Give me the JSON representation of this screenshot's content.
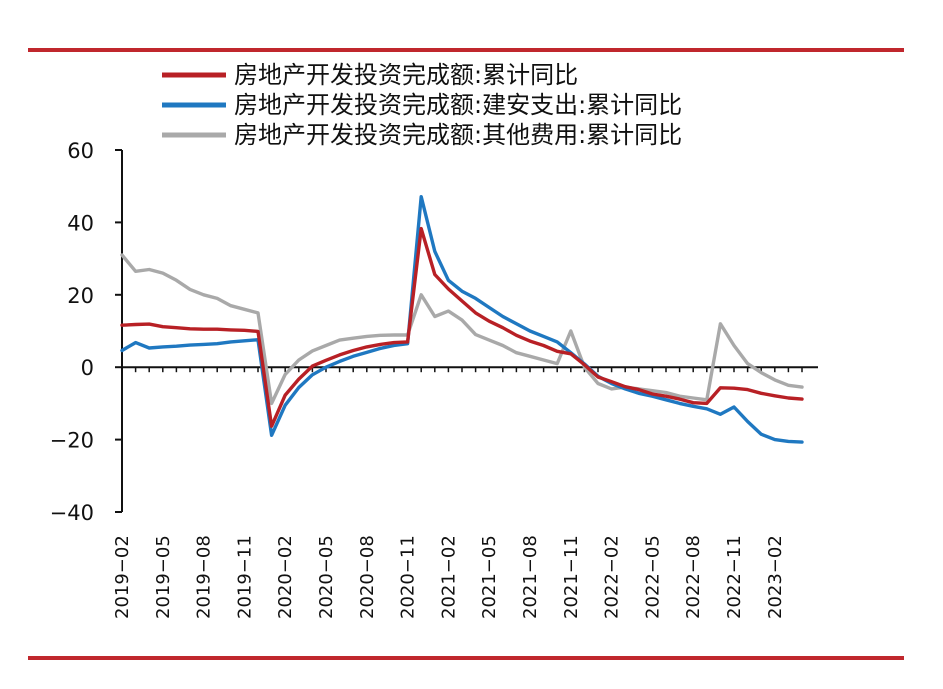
{
  "chart_data": {
    "type": "line",
    "title": "",
    "xlabel": "",
    "ylabel": "",
    "ylim": [
      -40,
      60
    ],
    "yticks": [
      60,
      40,
      20,
      0,
      -20,
      -40
    ],
    "yticks_text": [
      "60",
      "40",
      "20",
      "0",
      "−20",
      "−40"
    ],
    "grid": false,
    "legend_position": "top",
    "x": [
      "2019-02",
      "2019-03",
      "2019-04",
      "2019-05",
      "2019-06",
      "2019-07",
      "2019-08",
      "2019-09",
      "2019-10",
      "2019-11",
      "2019-12",
      "2020-02",
      "2020-03",
      "2020-04",
      "2020-05",
      "2020-06",
      "2020-07",
      "2020-08",
      "2020-09",
      "2020-10",
      "2020-11",
      "2020-12",
      "2021-02",
      "2021-03",
      "2021-04",
      "2021-05",
      "2021-06",
      "2021-07",
      "2021-08",
      "2021-09",
      "2021-10",
      "2021-11",
      "2021-12",
      "2022-02",
      "2022-03",
      "2022-04",
      "2022-05",
      "2022-06",
      "2022-07",
      "2022-08",
      "2022-09",
      "2022-10",
      "2022-11",
      "2022-12",
      "2023-02",
      "2023-03",
      "2023-04",
      "2023-05",
      "2023-06",
      "2023-07",
      "2023-08"
    ],
    "xtick_labels": [
      "2019−02",
      "2019−05",
      "2019−08",
      "2019−11",
      "2020−02",
      "2020−05",
      "2020−08",
      "2020−11",
      "2021−02",
      "2021−05",
      "2021−08",
      "2021−11",
      "2022−02",
      "2022−05",
      "2022−08",
      "2022−11",
      "2023−02",
      "2023−05",
      "2023−08"
    ],
    "series": [
      {
        "name": "房地产开发投资完成额:累计同比",
        "color": "#b82025",
        "values": [
          11.6,
          11.8,
          11.9,
          11.2,
          10.9,
          10.6,
          10.5,
          10.5,
          10.3,
          10.2,
          9.9,
          -16.3,
          -7.7,
          -3.3,
          0.3,
          1.9,
          3.4,
          4.6,
          5.6,
          6.3,
          6.8,
          7.0,
          38.3,
          25.6,
          21.6,
          18.3,
          15.0,
          12.7,
          10.9,
          8.8,
          7.2,
          6.0,
          4.4,
          3.7,
          0.7,
          -2.7,
          -4.0,
          -5.4,
          -6.2,
          -7.4,
          -8.0,
          -8.8,
          -9.8,
          -10.0,
          -5.7,
          -5.8,
          -6.2,
          -7.2,
          -7.9,
          -8.5,
          -8.8
        ]
      },
      {
        "name": "房地产开发投资完成额:建安支出:累计同比",
        "color": "#1f78c1",
        "values": [
          4.6,
          6.8,
          5.3,
          5.6,
          5.8,
          6.1,
          6.3,
          6.5,
          7.0,
          7.3,
          7.6,
          -18.8,
          -10.5,
          -5.6,
          -2.1,
          0.0,
          1.6,
          3.0,
          4.1,
          5.2,
          6.0,
          6.5,
          47.1,
          32.0,
          24.0,
          21.0,
          19.0,
          16.5,
          14.0,
          12.0,
          10.0,
          8.5,
          7.0,
          4.0,
          0.9,
          -2.5,
          -4.5,
          -6.0,
          -7.2,
          -8.0,
          -9.0,
          -10.0,
          -10.8,
          -11.5,
          -13.0,
          -11.0,
          -15.0,
          -18.5,
          -20.0,
          -20.5,
          -20.7
        ]
      },
      {
        "name": "房地产开发投资完成额:其他费用:累计同比",
        "color": "#a9a9a9",
        "values": [
          31.0,
          26.5,
          27.0,
          26.0,
          24.0,
          21.5,
          20.0,
          19.0,
          17.0,
          16.0,
          15.0,
          -10.0,
          -2.0,
          2.0,
          4.5,
          6.0,
          7.5,
          8.0,
          8.5,
          8.8,
          8.9,
          8.9,
          20.0,
          14.0,
          15.5,
          13.0,
          9.0,
          7.5,
          6.0,
          4.0,
          3.0,
          2.0,
          1.0,
          10.0,
          0.0,
          -4.5,
          -6.0,
          -5.5,
          -6.0,
          -6.5,
          -7.0,
          -8.0,
          -8.5,
          -9.0,
          12.0,
          6.0,
          1.0,
          -1.5,
          -3.5,
          -5.0,
          -5.5
        ]
      }
    ]
  }
}
